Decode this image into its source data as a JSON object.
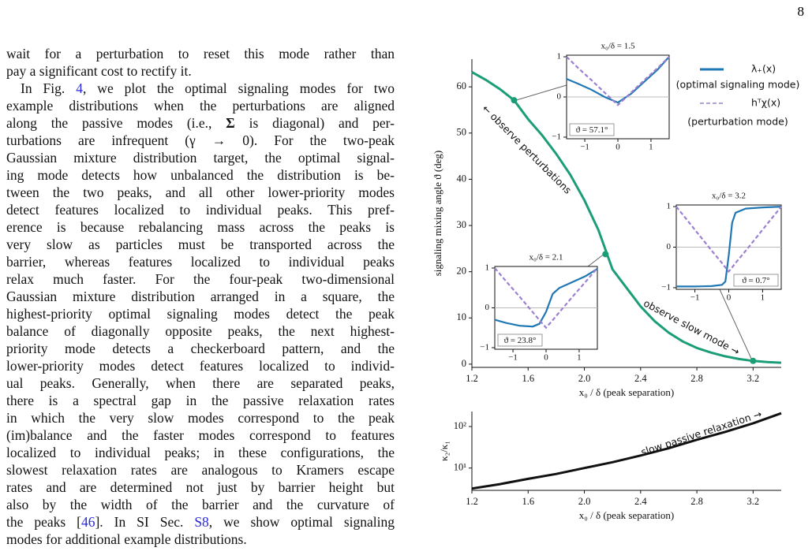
{
  "page_number": "8",
  "text": {
    "paragraphs": [
      {
        "indent": false,
        "lines": [
          [
            "wait for a perturbation to reset this mode rather than"
          ],
          [
            "pay a significant cost to rectify it."
          ]
        ]
      },
      {
        "indent": true,
        "lines": [
          [
            "In Fig. ",
            {
              "ref": "4"
            },
            ", we plot the optimal signaling modes for two"
          ],
          [
            "example distributions when the perturbations are aligned"
          ],
          [
            "along the passive modes (i.e., ",
            {
              "bold": "Σ"
            },
            " is diagonal) and per-"
          ],
          [
            "turbations are infrequent (γ → 0).  For the two-peak"
          ],
          [
            "Gaussian mixture distribution target, the optimal signal-"
          ],
          [
            "ing mode detects how unbalanced the distribution is be-"
          ],
          [
            "tween the two peaks, and all other lower-priority modes"
          ],
          [
            "detect features localized to individual peaks. This pref-"
          ],
          [
            "erence is because rebalancing mass across the peaks is"
          ],
          [
            "very slow as particles must be transported across the"
          ],
          [
            "barrier, whereas features localized to individual peaks"
          ],
          [
            "relax much faster.  For the four-peak two-dimensional"
          ],
          [
            "Gaussian mixture distribution arranged in a square, the"
          ],
          [
            "highest-priority optimal signaling modes detect the peak"
          ],
          [
            "balance of diagonally opposite peaks, the next highest-"
          ],
          [
            "priority mode detects a checkerboard pattern, and the"
          ],
          [
            "lower-priority modes detect features localized to individ-"
          ],
          [
            "ual peaks.  Generally, when there are separated peaks,"
          ],
          [
            "there is a spectral gap in the passive relaxation rates"
          ],
          [
            "in which the very slow modes correspond to the peak"
          ],
          [
            "(im)balance and the faster modes correspond to features"
          ],
          [
            "localized to individual peaks; in these configurations, the"
          ],
          [
            "slowest relaxation rates are analogous to Kramers escape"
          ],
          [
            "rates and are determined not just by barrier height but"
          ],
          [
            "also by the width of the barrier and the curvature of"
          ],
          [
            "the peaks [",
            {
              "ref": "46"
            },
            "]. In SI Sec. ",
            {
              "ref": "S8"
            },
            ", we show optimal signaling"
          ],
          [
            "modes for additional example distributions."
          ]
        ]
      }
    ]
  },
  "chart_data": [
    {
      "type": "line",
      "frame": "left-bottom",
      "ylabel": "signaling mixing angle ϑ (deg)",
      "xlabel": "x₀ / δ  (peak separation)",
      "xlim": [
        1.2,
        3.4
      ],
      "ylim": [
        -0.7,
        66
      ],
      "xticks": [
        1.2,
        1.6,
        {
          "value": 2.0,
          "label": "2.0"
        },
        2.4,
        2.8,
        3.2
      ],
      "yticks": [
        0,
        10,
        20,
        30,
        40,
        50,
        60
      ],
      "series": [
        {
          "color": "#1b9e77",
          "x": [
            1.2,
            1.3,
            1.4,
            1.5,
            1.6,
            1.7,
            1.8,
            1.9,
            2.0,
            2.1,
            2.2,
            2.3,
            2.4,
            2.5,
            2.6,
            2.7,
            2.8,
            2.9,
            3.0,
            3.1,
            3.2,
            3.3,
            3.4
          ],
          "values": [
            63.2,
            61.5,
            59.5,
            57.1,
            53,
            49.5,
            45.5,
            41,
            35.5,
            29,
            20.5,
            16.5,
            12.5,
            9.3,
            6.8,
            4.9,
            3.5,
            2.5,
            1.7,
            1.1,
            0.7,
            0.45,
            0.3
          ]
        }
      ],
      "points": {
        "color": "#1b9e77",
        "x": [
          1.5,
          2.15,
          3.2
        ],
        "values": [
          57.1,
          23.8,
          0.7
        ]
      },
      "annotations": [
        "← observe perturbations",
        "observe slow mode →"
      ],
      "legend": [
        {
          "label": "λ₊(x)",
          "description": "(optimal signaling mode)",
          "color": "#1f77b4",
          "dash": false
        },
        {
          "label": "hᵀχ(x)",
          "description": "(perturbation mode)",
          "color": "#9b80d2",
          "dash": true
        }
      ]
    },
    {
      "type": "line",
      "frame": "left-bottom",
      "log_y": true,
      "ylabel": "κ₂/κ₁",
      "xlabel": "x₀ / δ  (peak separation)",
      "xlim": [
        1.2,
        3.4
      ],
      "ylim": [
        2.9,
        230
      ],
      "xticks": [
        1.2,
        1.6,
        {
          "value": 2.0,
          "label": "2.0"
        },
        2.4,
        2.8,
        3.2
      ],
      "yticks": [
        {
          "value": 10,
          "label": "10¹"
        },
        {
          "value": 100,
          "label": "10²"
        }
      ],
      "series": [
        {
          "color": "#111111",
          "x": [
            1.2,
            1.4,
            1.6,
            1.8,
            2.0,
            2.2,
            2.4,
            2.6,
            2.8,
            3.0,
            3.2,
            3.3,
            3.4
          ],
          "values": [
            3.2,
            4.1,
            5.5,
            7.2,
            10,
            13.8,
            20,
            30,
            48,
            74,
            120,
            158,
            209
          ]
        }
      ],
      "annotations": [
        "slow passive relaxation →"
      ]
    },
    {
      "type": "line",
      "frame": "box",
      "title": "x₀/δ = 1.5",
      "note": "ϑ = 57.1°",
      "note_corner": "lower left",
      "xlim": [
        -1.55,
        1.55
      ],
      "ylim": [
        -1.04,
        1.04
      ],
      "hline": 0,
      "xticks": [
        {
          "value": -1,
          "label": "−1"
        },
        0,
        1
      ],
      "yticks": [
        {
          "value": -1,
          "label": "−1"
        },
        0,
        1
      ],
      "series": [
        {
          "color": "#1f77b4",
          "dash": false,
          "x": [
            -1.55,
            -1.2,
            -0.8,
            -0.4,
            0,
            0.4,
            0.8,
            1.2,
            1.55
          ],
          "values": [
            0.45,
            0.33,
            0.18,
            0.0,
            -0.14,
            0.08,
            0.38,
            0.68,
            1.0
          ]
        },
        {
          "color": "#9b80d2",
          "dash": true,
          "x": [
            -1.55,
            -1.2,
            -0.8,
            -0.4,
            0,
            0.4,
            0.8,
            1.2,
            1.55
          ],
          "values": [
            1.0,
            0.72,
            0.42,
            0.11,
            -0.2,
            0.11,
            0.42,
            0.72,
            1.0
          ]
        }
      ]
    },
    {
      "type": "line",
      "frame": "box",
      "title": "x₀/δ = 2.1",
      "note": "ϑ = 23.8°",
      "note_corner": "lower left",
      "xlim": [
        -1.55,
        1.55
      ],
      "ylim": [
        -1.04,
        1.04
      ],
      "hline": 0,
      "xticks": [
        {
          "value": -1,
          "label": "−1"
        },
        0,
        1
      ],
      "yticks": [
        {
          "value": -1,
          "label": "−1"
        },
        0,
        1
      ],
      "series": [
        {
          "color": "#1f77b4",
          "dash": false,
          "x": [
            -1.55,
            -1.2,
            -0.8,
            -0.4,
            -0.2,
            0,
            0.2,
            0.4,
            0.8,
            1.2,
            1.55
          ],
          "values": [
            -0.3,
            -0.38,
            -0.45,
            -0.47,
            -0.4,
            -0.1,
            0.35,
            0.5,
            0.65,
            0.8,
            0.98
          ]
        },
        {
          "color": "#9b80d2",
          "dash": true,
          "x": [
            -1.55,
            -1.2,
            -0.8,
            -0.4,
            -0.2,
            0,
            0.2,
            0.4,
            0.8,
            1.2,
            1.55
          ],
          "values": [
            1.0,
            0.66,
            0.28,
            -0.11,
            -0.31,
            -0.5,
            -0.31,
            -0.11,
            0.28,
            0.66,
            1.0
          ]
        }
      ]
    },
    {
      "type": "line",
      "frame": "box",
      "title": "x₀/δ = 3.2",
      "note": "ϑ = 0.7°",
      "note_corner": "lower right",
      "xlim": [
        -1.55,
        1.55
      ],
      "ylim": [
        -1.04,
        1.04
      ],
      "hline": 0,
      "xticks": [
        {
          "value": -1,
          "label": "−1"
        },
        0,
        1
      ],
      "yticks": [
        {
          "value": -1,
          "label": "−1"
        },
        0,
        1
      ],
      "series": [
        {
          "color": "#1f77b4",
          "dash": false,
          "x": [
            -1.55,
            -1.0,
            -0.5,
            -0.2,
            -0.1,
            0,
            0.1,
            0.2,
            0.5,
            1.0,
            1.55
          ],
          "values": [
            -0.97,
            -0.97,
            -0.96,
            -0.93,
            -0.85,
            -0.2,
            0.6,
            0.85,
            0.95,
            0.98,
            1.0
          ]
        },
        {
          "color": "#9b80d2",
          "dash": true,
          "x": [
            -1.55,
            -1.0,
            -0.5,
            -0.2,
            -0.1,
            0,
            0.1,
            0.2,
            0.5,
            1.0,
            1.55
          ],
          "values": [
            1.0,
            0.43,
            -0.09,
            -0.39,
            -0.5,
            -0.6,
            -0.5,
            -0.39,
            -0.09,
            0.43,
            1.0
          ]
        }
      ]
    }
  ]
}
